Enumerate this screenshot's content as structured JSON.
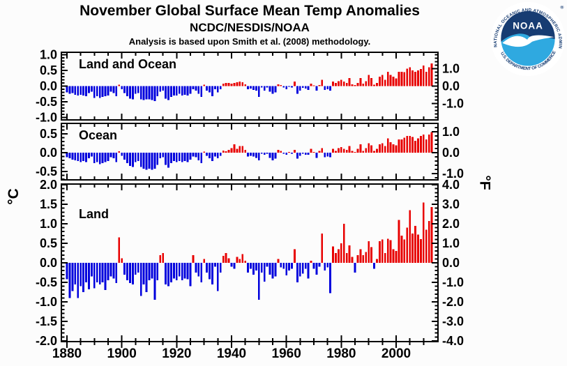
{
  "header": {
    "title": "November Global Surface Mean Temp Anomalies",
    "subtitle": "NCDC/NESDIS/NOAA",
    "methodology": "Analysis is based upon Smith et al. (2008) methodology."
  },
  "units": {
    "left": "°C",
    "right": "°F"
  },
  "colors": {
    "positive_bar": "#e80000",
    "negative_bar": "#0000dd",
    "frame": "#000000"
  },
  "logo": {
    "org": "NOAA",
    "top_text": "NATIONAL OCEANIC AND ATMOSPHERIC ADMINISTRATION",
    "bottom_text": "U.S. DEPARTMENT OF COMMERCE",
    "registered": "®",
    "navy": "#173c72",
    "cyan": "#2fa9e0"
  },
  "x_axis": {
    "tick_years": [
      1880,
      1900,
      1920,
      1940,
      1960,
      1980,
      2000
    ],
    "minor_step": 5,
    "range": [
      1878,
      2016
    ]
  },
  "chart_data": [
    {
      "type": "bar",
      "title": "Land and Ocean",
      "unit_left": "°C",
      "unit_right": "°F",
      "start_year": 1880,
      "end_year": 2013,
      "ylim_c": [
        -1.08,
        1.08
      ],
      "yticks_c": [
        1.0,
        0.5,
        0.0,
        -0.5,
        -1.0
      ],
      "yticks_f": [
        1.0,
        0.0,
        -1.0
      ],
      "values": [
        -0.2,
        -0.25,
        -0.22,
        -0.28,
        -0.3,
        -0.28,
        -0.3,
        -0.32,
        -0.22,
        -0.18,
        -0.38,
        -0.32,
        -0.38,
        -0.35,
        -0.32,
        -0.3,
        -0.18,
        -0.22,
        -0.32,
        0.05,
        -0.1,
        -0.22,
        -0.32,
        -0.4,
        -0.42,
        -0.25,
        -0.22,
        -0.42,
        -0.45,
        -0.42,
        -0.42,
        -0.44,
        -0.48,
        -0.32,
        -0.18,
        -0.15,
        -0.4,
        -0.45,
        -0.35,
        -0.3,
        -0.3,
        -0.25,
        -0.3,
        -0.28,
        -0.3,
        -0.25,
        -0.1,
        -0.15,
        -0.25,
        -0.35,
        0.05,
        -0.15,
        -0.2,
        -0.32,
        -0.1,
        -0.2,
        -0.1,
        0.08,
        0.1,
        0.1,
        0.08,
        0.1,
        0.12,
        0.14,
        0.12,
        0.06,
        -0.1,
        -0.08,
        -0.12,
        -0.15,
        -0.35,
        -0.05,
        -0.15,
        -0.05,
        -0.18,
        -0.25,
        -0.2,
        0.06,
        0.03,
        -0.05,
        -0.1,
        -0.02,
        -0.05,
        0.14,
        -0.25,
        -0.15,
        -0.06,
        -0.08,
        -0.12,
        0.08,
        0.02,
        -0.15,
        0.03,
        0.2,
        -0.12,
        -0.1,
        -0.15,
        0.14,
        0.1,
        0.16,
        0.2,
        0.14,
        0.1,
        0.26,
        0.06,
        0.03,
        0.1,
        0.26,
        0.08,
        0.16,
        0.36,
        0.26,
        0.05,
        0.1,
        0.3,
        0.36,
        0.2,
        0.46,
        0.36,
        0.3,
        0.25,
        0.46,
        0.46,
        0.45,
        0.56,
        0.6,
        0.5,
        0.46,
        0.5,
        0.55,
        0.66,
        0.46,
        0.6,
        0.72
      ]
    },
    {
      "type": "bar",
      "title": "Ocean",
      "unit_left": "°C",
      "unit_right": "°F",
      "start_year": 1880,
      "end_year": 2013,
      "ylim_c": [
        -0.72,
        0.78
      ],
      "yticks_c": [
        0.5,
        0.0,
        -0.5
      ],
      "yticks_f": [
        1.0,
        0.0,
        -1.0
      ],
      "values": [
        -0.12,
        -0.15,
        -0.18,
        -0.2,
        -0.22,
        -0.25,
        -0.22,
        -0.25,
        -0.15,
        -0.1,
        -0.28,
        -0.25,
        -0.3,
        -0.28,
        -0.25,
        -0.22,
        -0.12,
        -0.15,
        -0.25,
        0.04,
        -0.08,
        -0.18,
        -0.28,
        -0.35,
        -0.38,
        -0.25,
        -0.22,
        -0.38,
        -0.42,
        -0.45,
        -0.42,
        -0.45,
        -0.42,
        -0.32,
        -0.15,
        -0.12,
        -0.32,
        -0.4,
        -0.28,
        -0.22,
        -0.25,
        -0.22,
        -0.25,
        -0.22,
        -0.25,
        -0.18,
        -0.1,
        -0.12,
        -0.2,
        -0.28,
        0.03,
        -0.08,
        -0.15,
        -0.22,
        -0.1,
        -0.15,
        -0.08,
        0.06,
        0.04,
        0.08,
        0.12,
        0.22,
        0.1,
        0.18,
        0.18,
        0.08,
        -0.1,
        -0.08,
        -0.1,
        -0.14,
        -0.2,
        -0.02,
        -0.05,
        -0.02,
        -0.14,
        -0.2,
        -0.16,
        0.08,
        0.05,
        -0.02,
        -0.05,
        0.02,
        -0.02,
        0.08,
        -0.16,
        -0.08,
        -0.02,
        -0.05,
        -0.05,
        0.1,
        0.02,
        -0.14,
        0.05,
        0.12,
        -0.12,
        -0.1,
        -0.12,
        0.1,
        0.05,
        0.12,
        0.15,
        0.1,
        0.08,
        0.18,
        0.05,
        0.02,
        0.1,
        0.22,
        0.05,
        0.12,
        0.25,
        0.2,
        0.05,
        0.1,
        0.22,
        0.25,
        0.18,
        0.38,
        0.28,
        0.22,
        0.2,
        0.35,
        0.35,
        0.4,
        0.45,
        0.45,
        0.42,
        0.32,
        0.38,
        0.45,
        0.48,
        0.35,
        0.48,
        0.55
      ]
    },
    {
      "type": "bar",
      "title": "Land",
      "unit_left": "°C",
      "unit_right": "°F",
      "start_year": 1880,
      "end_year": 2013,
      "ylim_c": [
        -2.02,
        2.02
      ],
      "yticks_c": [
        2.0,
        1.5,
        1.0,
        0.5,
        0.0,
        -0.5,
        -1.0,
        -1.5,
        -2.0
      ],
      "yticks_f": [
        4.0,
        3.0,
        2.0,
        1.0,
        0.0,
        -1.0,
        -2.0,
        -3.0,
        -4.0
      ],
      "values": [
        -0.42,
        -0.9,
        -0.72,
        -0.55,
        -0.9,
        -0.6,
        -0.75,
        -0.5,
        -0.68,
        -0.35,
        -0.65,
        -0.5,
        -0.55,
        -0.5,
        -0.7,
        -0.45,
        -0.35,
        -0.4,
        -0.52,
        0.65,
        0.12,
        -0.3,
        -0.45,
        -0.52,
        -0.55,
        -0.3,
        -0.25,
        -0.85,
        -0.55,
        -0.75,
        -0.45,
        -0.4,
        -0.95,
        -0.45,
        0.2,
        0.25,
        -0.55,
        -0.6,
        -0.5,
        -0.4,
        -0.45,
        -0.35,
        -0.45,
        -0.4,
        -0.42,
        -0.6,
        0.2,
        -0.25,
        -0.35,
        -0.5,
        0.1,
        -0.25,
        -0.42,
        -0.55,
        -0.1,
        -0.72,
        -0.25,
        0.18,
        0.25,
        0.12,
        -0.1,
        -0.15,
        0.15,
        0.1,
        0.22,
        0.05,
        -0.25,
        -0.15,
        -0.3,
        -0.2,
        -0.95,
        -0.25,
        -0.48,
        -0.1,
        -0.3,
        -0.4,
        -0.35,
        0.1,
        -0.12,
        -0.15,
        -0.32,
        -0.2,
        -0.15,
        0.35,
        -0.5,
        -0.35,
        -0.28,
        -0.15,
        -0.4,
        0.05,
        -0.15,
        -0.3,
        -0.1,
        0.75,
        -0.2,
        -0.12,
        -0.78,
        0.42,
        0.25,
        0.35,
        0.5,
        1.0,
        0.25,
        0.45,
        0.15,
        -0.25,
        0.2,
        0.35,
        0.2,
        0.28,
        0.55,
        0.4,
        -0.15,
        0.1,
        0.55,
        0.6,
        0.25,
        0.62,
        0.58,
        0.35,
        0.3,
        1.1,
        0.7,
        0.6,
        0.9,
        1.35,
        0.75,
        0.95,
        0.72,
        0.61,
        1.55,
        0.85,
        1.07,
        1.43
      ]
    }
  ]
}
